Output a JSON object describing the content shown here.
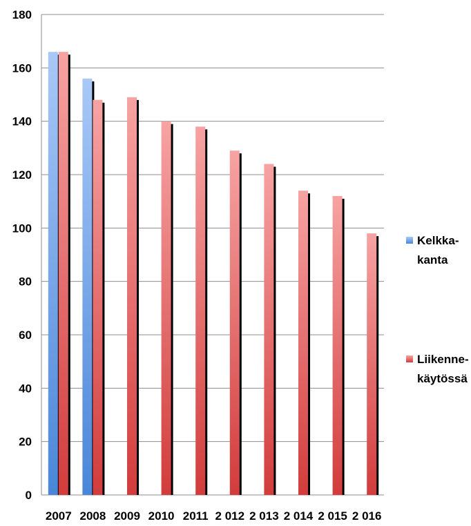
{
  "chart_data": {
    "type": "bar",
    "title": "",
    "xlabel": "",
    "ylabel": "",
    "categories": [
      "2007",
      "2008",
      "2009",
      "2010",
      "2011",
      "2 012",
      "2 013",
      "2 014",
      "2 015",
      "2 016"
    ],
    "series": [
      {
        "name": "Kelkka-kanta",
        "legend_lines": [
          "Kelkka-",
          "kanta"
        ],
        "color": "#4a86d8",
        "values": [
          166,
          156,
          null,
          null,
          null,
          null,
          null,
          null,
          null,
          null
        ]
      },
      {
        "name": "Liikenne-käytössä",
        "legend_lines": [
          "Liikenne-",
          "käytössä"
        ],
        "color": "#d94a4a",
        "values": [
          166,
          148,
          149,
          140,
          138,
          129,
          124,
          114,
          112,
          98
        ]
      }
    ],
    "ylim": [
      0,
      180
    ],
    "yticks": [
      0,
      20,
      40,
      60,
      80,
      100,
      120,
      140,
      160,
      180
    ],
    "grid": true,
    "legend_position": "right"
  }
}
